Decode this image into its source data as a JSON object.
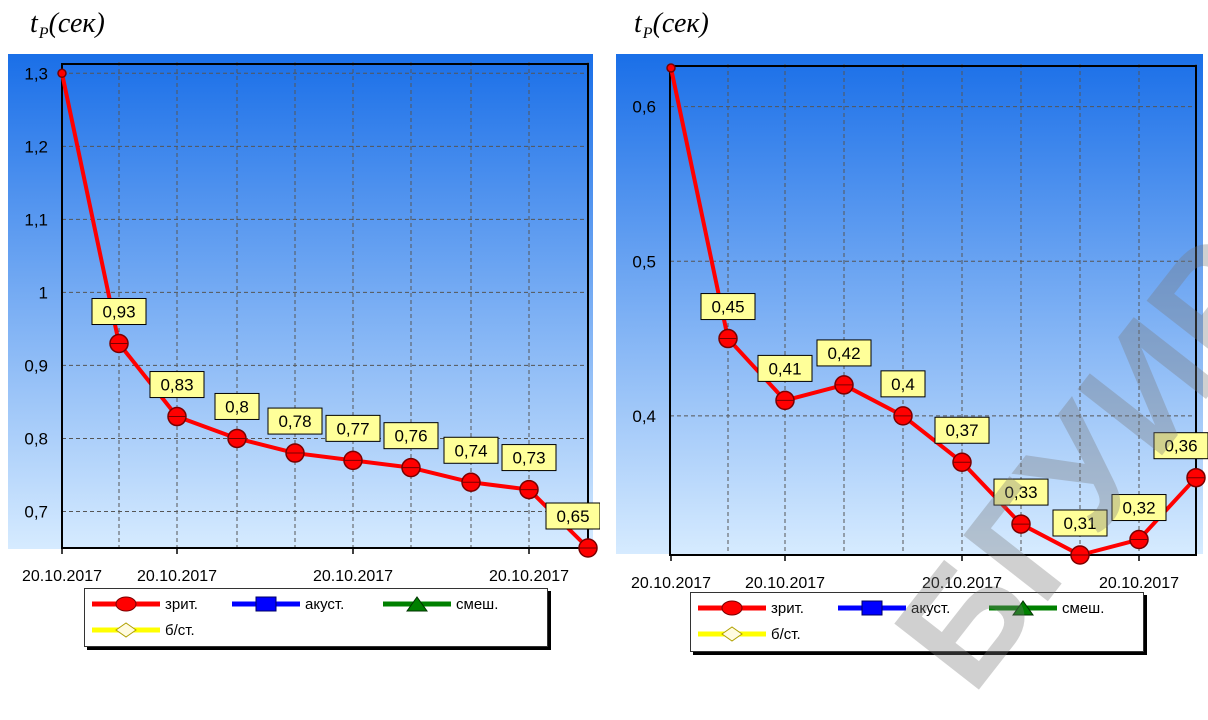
{
  "chart_data": [
    {
      "type": "line",
      "title": "",
      "ylabel": "t",
      "ylabel_sub": "Р",
      "ylabel_unit": "(сек)",
      "ylim": [
        0.65,
        1.31
      ],
      "yticks": [
        0.7,
        0.8,
        0.9,
        1,
        1.1,
        1.2,
        1.3
      ],
      "ytick_labels": [
        "0,7",
        "0,8",
        "0,9",
        "1",
        "1,1",
        "1,2",
        "1,3"
      ],
      "xtick_labels": [
        "20.10.2017",
        "20.10.2017",
        "20.10.2017",
        "20.10.2017"
      ],
      "xtick_index": [
        0,
        2,
        5,
        8
      ],
      "grid": true,
      "series": [
        {
          "name": "зрит.",
          "color": "#ff0000",
          "values": [
            1.3,
            0.93,
            0.83,
            0.8,
            0.78,
            0.77,
            0.76,
            0.74,
            0.73,
            0.65
          ],
          "data_labels": [
            "",
            "0,93",
            "0,83",
            "0,8",
            "0,78",
            "0,77",
            "0,76",
            "0,74",
            "0,73",
            "0,65"
          ]
        }
      ],
      "legend": {
        "placement": "bottom",
        "items": [
          {
            "label": "зрит.",
            "color": "#ff0000",
            "marker": "circle"
          },
          {
            "label": "акуст.",
            "color": "#0000ff",
            "marker": "square"
          },
          {
            "label": "смеш.",
            "color": "#008000",
            "marker": "triangle"
          },
          {
            "label": "б/ст.",
            "color": "#ffff00",
            "marker": "diamond"
          }
        ]
      }
    },
    {
      "type": "line",
      "title": "",
      "ylabel": "t",
      "ylabel_sub": "Р",
      "ylabel_unit": "(сек)",
      "ylim": [
        0.31,
        0.625
      ],
      "yticks": [
        0.4,
        0.5,
        0.6
      ],
      "ytick_labels": [
        "0,4",
        "0,5",
        "0,6"
      ],
      "xtick_labels": [
        "20.10.2017",
        "20.10.2017",
        "20.10.2017",
        "20.10.2017"
      ],
      "xtick_index": [
        0,
        2,
        5,
        8
      ],
      "grid": true,
      "series": [
        {
          "name": "зрит.",
          "color": "#ff0000",
          "values": [
            0.625,
            0.45,
            0.41,
            0.42,
            0.4,
            0.37,
            0.33,
            0.31,
            0.32,
            0.36
          ],
          "data_labels": [
            "",
            "0,45",
            "0,41",
            "0,42",
            "0,4",
            "0,37",
            "0,33",
            "0,31",
            "0,32",
            "0,36"
          ]
        }
      ],
      "legend": {
        "placement": "bottom",
        "items": [
          {
            "label": "зрит.",
            "color": "#ff0000",
            "marker": "circle"
          },
          {
            "label": "акуст.",
            "color": "#0000ff",
            "marker": "square"
          },
          {
            "label": "смеш.",
            "color": "#008000",
            "marker": "triangle"
          },
          {
            "label": "б/ст.",
            "color": "#ffff00",
            "marker": "diamond"
          }
        ]
      }
    }
  ],
  "watermark": "БГУИР",
  "colors": {
    "plot_gradient_top": "#1a6fe8",
    "plot_gradient_bottom": "#d6ebff",
    "line": "#ff0000",
    "label_bg": "#ffff99"
  }
}
